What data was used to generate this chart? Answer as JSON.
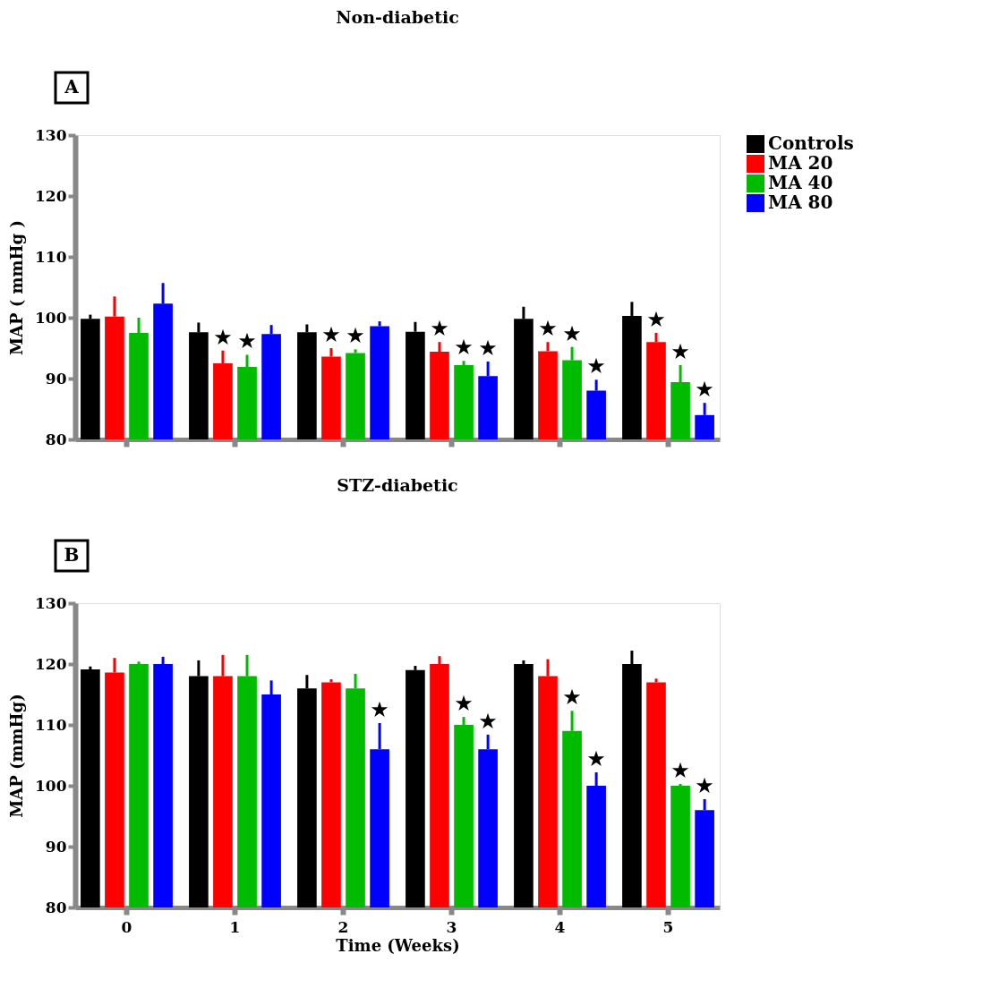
{
  "chart_data": [
    {
      "type": "bar",
      "title": "Non-diabetic",
      "ylabel": "MAP ( mmHg )",
      "annotations": [
        "A"
      ],
      "categories": [
        "0",
        "1",
        "2",
        "3",
        "4",
        "5"
      ],
      "ylim": [
        80,
        130
      ],
      "yticks": [
        80,
        90,
        100,
        110,
        120,
        130
      ],
      "grid": false,
      "legend": "top right",
      "tick_labels": "y",
      "series": [
        {
          "name": "Controls",
          "color": "#000000",
          "values": [
            99.8,
            97.6,
            97.6,
            97.7,
            99.8,
            100.3
          ],
          "errors": [
            [
              99.8,
              100.5
            ],
            [
              97.6,
              99.2
            ],
            [
              97.6,
              98.9
            ],
            [
              97.7,
              99.3
            ],
            [
              99.8,
              101.8
            ],
            [
              100.3,
              102.6
            ]
          ],
          "value_labels": [
            null,
            null,
            null,
            null,
            null,
            null
          ]
        },
        {
          "name": "MA 20",
          "color": "#ff0000",
          "values": [
            100.2,
            92.5,
            93.6,
            94.4,
            94.5,
            96.0
          ],
          "errors": [
            [
              100.2,
              103.5
            ],
            [
              92.5,
              94.6
            ],
            [
              93.6,
              95.0
            ],
            [
              94.4,
              96.0
            ],
            [
              94.5,
              96.0
            ],
            [
              96.0,
              97.5
            ]
          ],
          "value_labels": [
            null,
            "★",
            "★",
            "★",
            "★",
            "★"
          ]
        },
        {
          "name": "MA 40",
          "color": "#00bb00",
          "values": [
            97.5,
            91.9,
            94.2,
            92.2,
            93.0,
            89.4
          ],
          "errors": [
            [
              97.5,
              100.0
            ],
            [
              91.9,
              93.9
            ],
            [
              94.2,
              94.8
            ],
            [
              92.2,
              92.9
            ],
            [
              93.0,
              95.2
            ],
            [
              89.4,
              92.2
            ]
          ],
          "value_labels": [
            null,
            "★",
            "★",
            "★",
            "★",
            "★"
          ]
        },
        {
          "name": "MA 80",
          "color": "#0000ff",
          "values": [
            102.3,
            97.3,
            98.6,
            90.4,
            88.0,
            84.0
          ],
          "errors": [
            [
              102.3,
              105.7
            ],
            [
              97.3,
              98.8
            ],
            [
              98.6,
              99.4
            ],
            [
              90.4,
              92.8
            ],
            [
              88.0,
              89.8
            ],
            [
              84.0,
              86.0
            ]
          ],
          "value_labels": [
            null,
            null,
            null,
            "★",
            "★",
            "★"
          ]
        }
      ]
    },
    {
      "type": "bar",
      "title": "STZ-diabetic",
      "xlabel": "Time (Weeks)",
      "ylabel": "MAP (mmHg)",
      "annotations": [
        "B"
      ],
      "categories": [
        "0",
        "1",
        "2",
        "3",
        "4",
        "5"
      ],
      "ylim": [
        80,
        130
      ],
      "yticks": [
        80,
        90,
        100,
        110,
        120,
        130
      ],
      "grid": false,
      "legend": false,
      "series": [
        {
          "color": "#000000",
          "values": [
            119.1,
            118.0,
            116.0,
            119.0,
            120.0,
            120.0
          ],
          "errors": [
            [
              119.1,
              119.6
            ],
            [
              118.0,
              120.6
            ],
            [
              116.0,
              118.2
            ],
            [
              119.0,
              119.7
            ],
            [
              120.0,
              120.6
            ],
            [
              120.0,
              122.2
            ]
          ],
          "value_labels": [
            null,
            null,
            null,
            null,
            null,
            null
          ]
        },
        {
          "color": "#ff0000",
          "values": [
            118.6,
            118.0,
            117.0,
            120.0,
            118.0,
            117.0
          ],
          "errors": [
            [
              118.6,
              121.0
            ],
            [
              118.0,
              121.5
            ],
            [
              117.0,
              117.5
            ],
            [
              120.0,
              121.3
            ],
            [
              118.0,
              120.8
            ],
            [
              117.0,
              117.6
            ]
          ],
          "value_labels": [
            null,
            null,
            null,
            null,
            null,
            null
          ]
        },
        {
          "color": "#00bb00",
          "values": [
            120.0,
            118.0,
            116.0,
            110.0,
            109.0,
            100.0
          ],
          "errors": [
            [
              120.0,
              120.4
            ],
            [
              118.0,
              121.5
            ],
            [
              116.0,
              118.4
            ],
            [
              110.0,
              111.3
            ],
            [
              109.0,
              112.3
            ],
            [
              100.0,
              100.3
            ]
          ],
          "value_labels": [
            null,
            null,
            null,
            "★",
            "★",
            "★"
          ]
        },
        {
          "color": "#0000ff",
          "values": [
            120.0,
            115.0,
            106.0,
            106.0,
            100.0,
            96.0
          ],
          "errors": [
            [
              120.0,
              121.2
            ],
            [
              115.0,
              117.3
            ],
            [
              106.0,
              110.3
            ],
            [
              106.0,
              108.4
            ],
            [
              100.0,
              102.2
            ],
            [
              96.0,
              97.8
            ]
          ],
          "value_labels": [
            null,
            null,
            "★",
            "★",
            "★",
            "★"
          ]
        }
      ]
    }
  ]
}
